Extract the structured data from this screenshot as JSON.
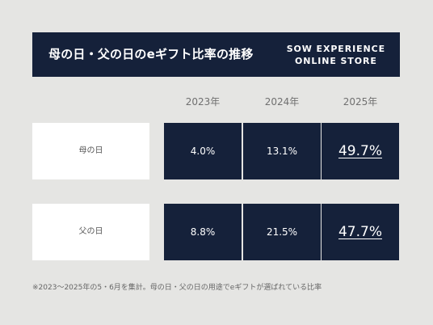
{
  "header": {
    "title": "母の日・父の日のeギフト比率の推移",
    "brand_line1": "SOW EXPERIENCE",
    "brand_line2": "ONLINE STORE"
  },
  "chart_data": {
    "type": "table",
    "title": "母の日・父の日のeギフト比率の推移",
    "columns": [
      "2023年",
      "2024年",
      "2025年"
    ],
    "rows": [
      {
        "label": "母の日",
        "values": [
          "4.0%",
          "13.1%",
          "49.7%"
        ],
        "numeric": [
          4.0,
          13.1,
          49.7
        ]
      },
      {
        "label": "父の日",
        "values": [
          "8.8%",
          "21.5%",
          "47.7%"
        ],
        "numeric": [
          8.8,
          21.5,
          47.7
        ]
      }
    ],
    "highlight_column": "2025年",
    "note": "※2023〜2025年の5・6月を集計。母の日・父の日の用途でeギフトが選ばれている比率"
  },
  "colors": {
    "background": "#e5e5e3",
    "navy": "#15213a",
    "label_box": "#ffffff",
    "text_muted": "#707070"
  }
}
